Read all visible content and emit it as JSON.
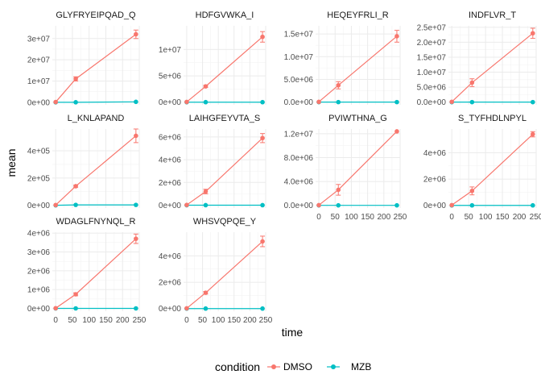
{
  "chart_data": {
    "type": "line",
    "facet": "small multiples, 4 columns, free y scales",
    "xlabel": "time",
    "ylabel": "mean",
    "x": [
      0,
      60,
      240
    ],
    "x_ticks": [
      0,
      50,
      100,
      150,
      200,
      250
    ],
    "x_tick_labels": [
      "0",
      "50",
      "100",
      "150",
      "200",
      "250"
    ],
    "xlim": [
      -10,
      250
    ],
    "grid": true,
    "legend": {
      "title": "condition",
      "placement": "bottom",
      "entries": [
        {
          "name": "DMSO",
          "color": "#F8766D"
        },
        {
          "name": "MZB",
          "color": "#00BFC4"
        }
      ]
    },
    "panels": [
      {
        "title": "GLYFRYEIPQAD_Q",
        "ylim": [
          -1200000,
          36000000
        ],
        "y_ticks": [
          0,
          10000000,
          20000000,
          30000000
        ],
        "y_tick_labels": [
          "0e+00",
          "1e+07",
          "2e+07",
          "3e+07"
        ],
        "series": [
          {
            "name": "DMSO",
            "values": [
              100000,
              11000000,
              32000000
            ],
            "errors": [
              0,
              1000000,
              2000000
            ]
          },
          {
            "name": "MZB",
            "values": [
              0,
              0,
              200000
            ],
            "errors": [
              0,
              0,
              0
            ]
          }
        ]
      },
      {
        "title": "HDFGVWKA_I",
        "ylim": [
          -500000,
          14500000
        ],
        "y_ticks": [
          0,
          5000000,
          10000000
        ],
        "y_tick_labels": [
          "0e+00",
          "5e+06",
          "1e+07"
        ],
        "series": [
          {
            "name": "DMSO",
            "values": [
              50000,
              3000000,
              12400000
            ],
            "errors": [
              0,
              200000,
              1000000
            ]
          },
          {
            "name": "MZB",
            "values": [
              0,
              0,
              0
            ],
            "errors": [
              0,
              0,
              0
            ]
          }
        ]
      },
      {
        "title": "HEQEYFRLI_R",
        "ylim": [
          -600000,
          16800000
        ],
        "y_ticks": [
          0,
          5000000,
          10000000,
          15000000
        ],
        "y_tick_labels": [
          "0.0e+00",
          "5.0e+06",
          "1.0e+07",
          "1.5e+07"
        ],
        "series": [
          {
            "name": "DMSO",
            "values": [
              50000,
              3700000,
              14500000
            ],
            "errors": [
              0,
              800000,
              1300000
            ]
          },
          {
            "name": "MZB",
            "values": [
              0,
              0,
              0
            ],
            "errors": [
              0,
              0,
              0
            ]
          }
        ]
      },
      {
        "title": "INDFLVR_T",
        "ylim": [
          -900000,
          25500000
        ],
        "y_ticks": [
          0,
          5000000,
          10000000,
          15000000,
          20000000,
          25000000
        ],
        "y_tick_labels": [
          "0.0e+00",
          "5.0e+06",
          "1.0e+07",
          "1.5e+07",
          "2.0e+07",
          "2.5e+07"
        ],
        "series": [
          {
            "name": "DMSO",
            "values": [
              100000,
              6500000,
              23000000
            ],
            "errors": [
              0,
              1300000,
              1700000
            ]
          },
          {
            "name": "MZB",
            "values": [
              0,
              0,
              0
            ],
            "errors": [
              0,
              0,
              0
            ]
          }
        ]
      },
      {
        "title": "L_KNLAPAND",
        "ylim": [
          -20000,
          560000
        ],
        "y_ticks": [
          0,
          200000,
          400000
        ],
        "y_tick_labels": [
          "0e+00",
          "2e+05",
          "4e+05"
        ],
        "series": [
          {
            "name": "DMSO",
            "values": [
              2000,
              140000,
              510000
            ],
            "errors": [
              0,
              8000,
              50000
            ]
          },
          {
            "name": "MZB",
            "values": [
              0,
              3000,
              3000
            ],
            "errors": [
              0,
              0,
              0
            ]
          }
        ]
      },
      {
        "title": "LAIHGFEYVTA_S",
        "ylim": [
          -250000,
          6700000
        ],
        "y_ticks": [
          0,
          2000000,
          4000000,
          6000000
        ],
        "y_tick_labels": [
          "0e+00",
          "2e+06",
          "4e+06",
          "6e+06"
        ],
        "series": [
          {
            "name": "DMSO",
            "values": [
              20000,
              1200000,
              5900000
            ],
            "errors": [
              0,
              200000,
              400000
            ]
          },
          {
            "name": "MZB",
            "values": [
              0,
              0,
              0
            ],
            "errors": [
              0,
              0,
              0
            ]
          }
        ]
      },
      {
        "title": "PVIWTHNA_G",
        "ylim": [
          -450000,
          12800000
        ],
        "y_ticks": [
          0,
          4000000,
          8000000,
          12000000
        ],
        "y_tick_labels": [
          "0.0e+00",
          "4.0e+06",
          "8.0e+06",
          "1.2e+07"
        ],
        "series": [
          {
            "name": "DMSO",
            "values": [
              30000,
              2600000,
              12400000
            ],
            "errors": [
              0,
              900000,
              0
            ]
          },
          {
            "name": "MZB",
            "values": [
              0,
              0,
              0
            ],
            "errors": [
              0,
              0,
              0
            ]
          }
        ]
      },
      {
        "title": "S_TYFHDLNPYL",
        "ylim": [
          -200000,
          5800000
        ],
        "y_ticks": [
          0,
          2000000,
          4000000
        ],
        "y_tick_labels": [
          "0e+00",
          "2e+06",
          "4e+06"
        ],
        "series": [
          {
            "name": "DMSO",
            "values": [
              20000,
              1100000,
              5400000
            ],
            "errors": [
              0,
              300000,
              200000
            ]
          },
          {
            "name": "MZB",
            "values": [
              0,
              0,
              0
            ],
            "errors": [
              0,
              0,
              0
            ]
          }
        ]
      },
      {
        "title": "WDAGLFNYNQL_R",
        "ylim": [
          -150000,
          4050000
        ],
        "y_ticks": [
          0,
          1000000,
          2000000,
          3000000,
          4000000
        ],
        "y_tick_labels": [
          "0e+00",
          "1e+06",
          "2e+06",
          "3e+06",
          "4e+06"
        ],
        "series": [
          {
            "name": "DMSO",
            "values": [
              10000,
              750000,
              3700000
            ],
            "errors": [
              0,
              80000,
              250000
            ]
          },
          {
            "name": "MZB",
            "values": [
              0,
              0,
              0
            ],
            "errors": [
              0,
              0,
              0
            ]
          }
        ]
      },
      {
        "title": "WHSVQPQE_Y",
        "ylim": [
          -200000,
          5800000
        ],
        "y_ticks": [
          0,
          2000000,
          4000000
        ],
        "y_tick_labels": [
          "0e+00",
          "2e+06",
          "4e+06"
        ],
        "series": [
          {
            "name": "DMSO",
            "values": [
              20000,
              1200000,
              5100000
            ],
            "errors": [
              0,
              100000,
              400000
            ]
          },
          {
            "name": "MZB",
            "values": [
              0,
              0,
              0
            ],
            "errors": [
              0,
              0,
              0
            ]
          }
        ]
      }
    ]
  }
}
